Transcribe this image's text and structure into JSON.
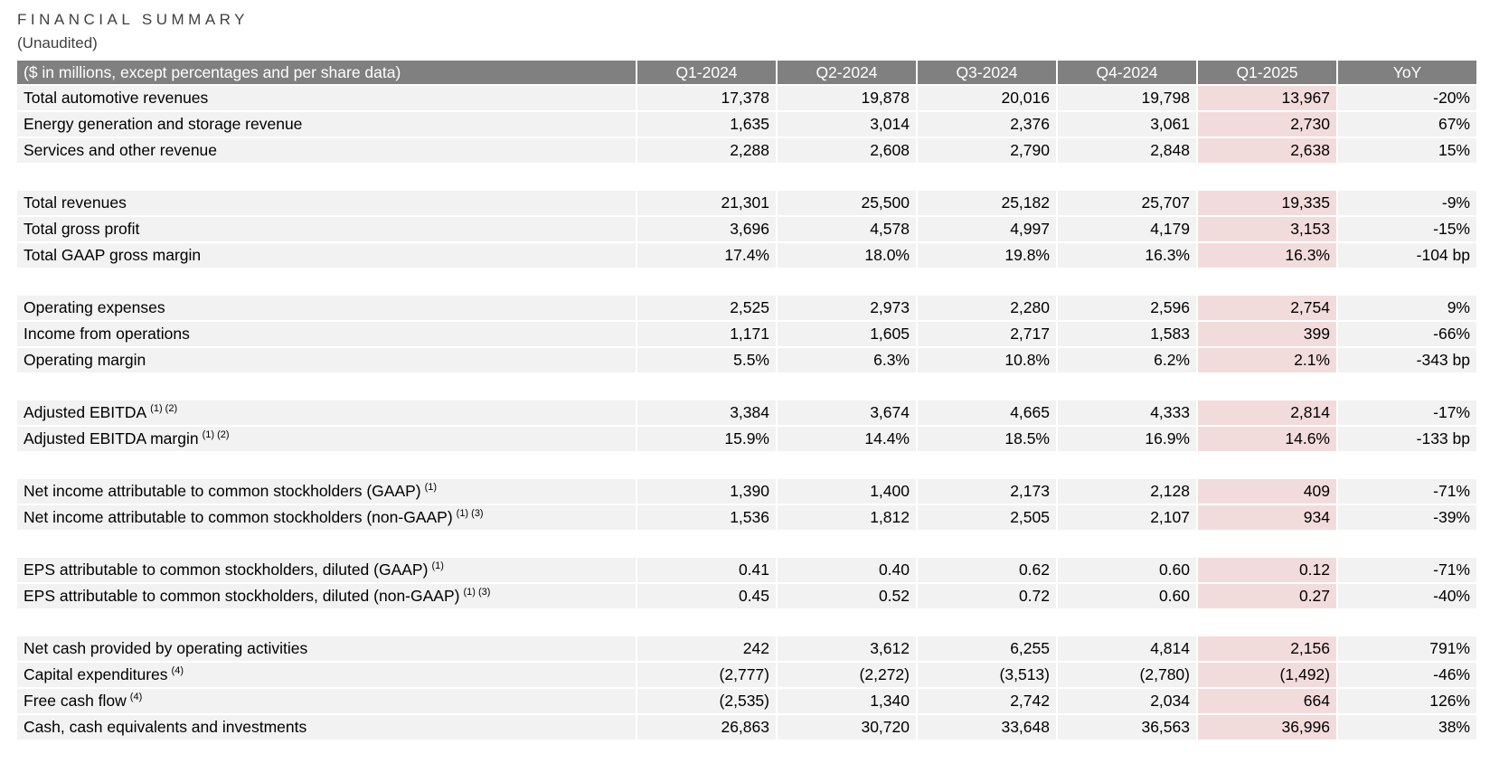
{
  "title": "FINANCIAL SUMMARY",
  "subtitle": "(Unaudited)",
  "header": {
    "label": "($ in millions, except percentages and per share data)",
    "columns": [
      "Q1-2024",
      "Q2-2024",
      "Q3-2024",
      "Q4-2024",
      "Q1-2025",
      "YoY"
    ]
  },
  "highlight_color": "#f2dcdb",
  "groups": [
    [
      {
        "label": "Total automotive revenues",
        "note": "",
        "values": [
          "17,378",
          "19,878",
          "20,016",
          "19,798",
          "13,967",
          "-20%"
        ]
      },
      {
        "label": "Energy generation and storage revenue",
        "note": "",
        "values": [
          "1,635",
          "3,014",
          "2,376",
          "3,061",
          "2,730",
          "67%"
        ]
      },
      {
        "label": "Services and other revenue",
        "note": "",
        "values": [
          "2,288",
          "2,608",
          "2,790",
          "2,848",
          "2,638",
          "15%"
        ]
      }
    ],
    [
      {
        "label": "Total revenues",
        "note": "",
        "values": [
          "21,301",
          "25,500",
          "25,182",
          "25,707",
          "19,335",
          "-9%"
        ]
      },
      {
        "label": "Total gross profit",
        "note": "",
        "values": [
          "3,696",
          "4,578",
          "4,997",
          "4,179",
          "3,153",
          "-15%"
        ]
      },
      {
        "label": "Total GAAP gross margin",
        "note": "",
        "values": [
          "17.4%",
          "18.0%",
          "19.8%",
          "16.3%",
          "16.3%",
          "-104 bp"
        ]
      }
    ],
    [
      {
        "label": "Operating expenses",
        "note": "",
        "values": [
          "2,525",
          "2,973",
          "2,280",
          "2,596",
          "2,754",
          "9%"
        ]
      },
      {
        "label": "Income from operations",
        "note": "",
        "values": [
          "1,171",
          "1,605",
          "2,717",
          "1,583",
          "399",
          "-66%"
        ]
      },
      {
        "label": "Operating margin",
        "note": "",
        "values": [
          "5.5%",
          "6.3%",
          "10.8%",
          "6.2%",
          "2.1%",
          "-343 bp"
        ]
      }
    ],
    [
      {
        "label": "Adjusted EBITDA",
        "note": "(1) (2)",
        "values": [
          "3,384",
          "3,674",
          "4,665",
          "4,333",
          "2,814",
          "-17%"
        ]
      },
      {
        "label": "Adjusted EBITDA margin",
        "note": "(1) (2)",
        "values": [
          "15.9%",
          "14.4%",
          "18.5%",
          "16.9%",
          "14.6%",
          "-133 bp"
        ]
      }
    ],
    [
      {
        "label": "Net income attributable to common stockholders (GAAP)",
        "note": "(1)",
        "values": [
          "1,390",
          "1,400",
          "2,173",
          "2,128",
          "409",
          "-71%"
        ]
      },
      {
        "label": "Net income attributable to common stockholders (non-GAAP)",
        "note": "(1) (3)",
        "values": [
          "1,536",
          "1,812",
          "2,505",
          "2,107",
          "934",
          "-39%"
        ]
      }
    ],
    [
      {
        "label": "EPS attributable to common stockholders, diluted (GAAP)",
        "note": "(1)",
        "values": [
          "0.41",
          "0.40",
          "0.62",
          "0.60",
          "0.12",
          "-71%"
        ]
      },
      {
        "label": "EPS attributable to common stockholders, diluted (non-GAAP)",
        "note": "(1) (3)",
        "values": [
          "0.45",
          "0.52",
          "0.72",
          "0.60",
          "0.27",
          "-40%"
        ]
      }
    ],
    [
      {
        "label": "Net cash provided by operating activities",
        "note": "",
        "values": [
          "242",
          "3,612",
          "6,255",
          "4,814",
          "2,156",
          "791%"
        ]
      },
      {
        "label": "Capital expenditures",
        "note": "(4)",
        "values": [
          "(2,777)",
          "(2,272)",
          "(3,513)",
          "(2,780)",
          "(1,492)",
          "-46%"
        ]
      },
      {
        "label": "Free cash flow",
        "note": "(4)",
        "values": [
          "(2,535)",
          "1,340",
          "2,742",
          "2,034",
          "664",
          "126%"
        ]
      },
      {
        "label": "Cash, cash equivalents and investments",
        "note": "",
        "values": [
          "26,863",
          "30,720",
          "33,648",
          "36,563",
          "36,996",
          "38%"
        ]
      }
    ]
  ]
}
